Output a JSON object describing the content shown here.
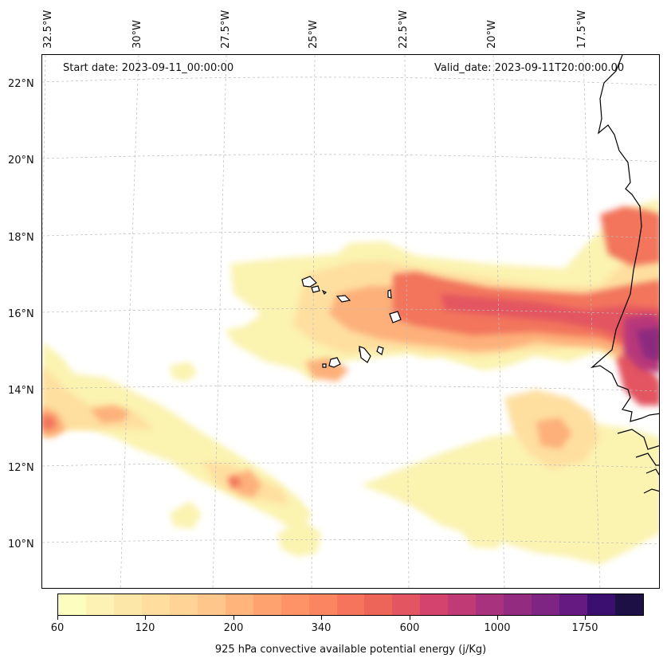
{
  "header": {
    "start_date": "Start date: 2023-09-11_00:00:00",
    "valid_date": "Valid_date: 2023-09-11T20:00:00.00"
  },
  "axes": {
    "lon_labels": [
      "32.5°W",
      "30°W",
      "27.5°W",
      "25°W",
      "22.5°W",
      "20°W",
      "17.5°W"
    ],
    "lat_labels": [
      "22°N",
      "20°N",
      "18°N",
      "16°N",
      "14°N",
      "12°N",
      "10°N"
    ]
  },
  "colorbar": {
    "title": "925 hPa convective available potential energy (j/Kg)",
    "tick_labels": [
      "60",
      "120",
      "200",
      "340",
      "600",
      "1000",
      "1750"
    ],
    "colors": [
      "#fcfdbf",
      "#fdf2b3",
      "#fde7a8",
      "#fedd9f",
      "#fed395",
      "#fec68a",
      "#feb47b",
      "#fea26f",
      "#fd9367",
      "#fb8560",
      "#f6745c",
      "#ed6459",
      "#e35560",
      "#d3436e",
      "#c03a76",
      "#a8327d",
      "#932b80",
      "#7e2482",
      "#641a80",
      "#3b0f70",
      "#1c1044"
    ]
  },
  "map": {
    "region": "Cape Verde / West Africa coast",
    "land_color": "#ffffff",
    "coast_color": "#000000"
  }
}
